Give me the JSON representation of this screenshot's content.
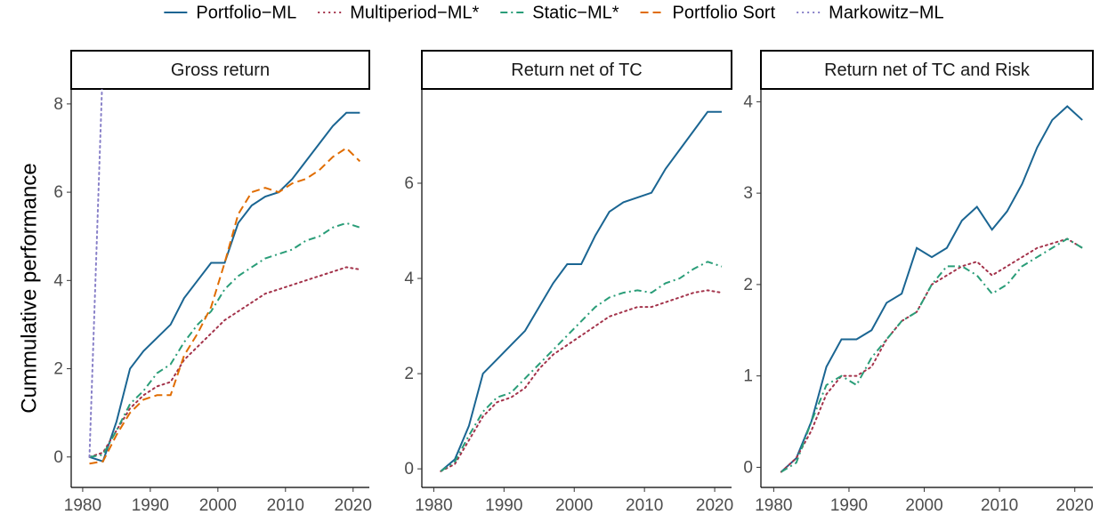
{
  "chart_data": [
    {
      "type": "line",
      "title": "Gross return",
      "ylabel": "Cummulative performance",
      "legend": "top",
      "x": [
        1981,
        1983,
        1985,
        1987,
        1989,
        1991,
        1993,
        1995,
        1997,
        1999,
        2001,
        2003,
        2005,
        2007,
        2009,
        2011,
        2013,
        2015,
        2017,
        2019,
        2021
      ],
      "xlim": [
        1978.3,
        2022.4
      ],
      "xticks": [
        1980,
        1990,
        2000,
        2010,
        2020
      ],
      "ylim": [
        -0.69,
        8.34
      ],
      "yticks": [
        0,
        2,
        4,
        6,
        8
      ],
      "series": [
        {
          "name": "Portfolio−ML",
          "color": "#1a6592",
          "linetype": "solid",
          "values": [
            0,
            -0.1,
            0.8,
            2.0,
            2.4,
            2.7,
            3.0,
            3.6,
            4.0,
            4.4,
            4.4,
            5.3,
            5.7,
            5.9,
            6.0,
            6.3,
            6.7,
            7.1,
            7.5,
            7.8,
            7.8
          ]
        },
        {
          "name": "Multiperiod−ML*",
          "color": "#a3324a",
          "linetype": "dotted",
          "values": [
            0,
            0.1,
            0.6,
            1.1,
            1.4,
            1.6,
            1.7,
            2.2,
            2.5,
            2.8,
            3.1,
            3.3,
            3.5,
            3.7,
            3.8,
            3.9,
            4.0,
            4.1,
            4.2,
            4.3,
            4.25
          ]
        },
        {
          "name": "Static−ML*",
          "color": "#2a9d78",
          "linetype": "dashdot",
          "values": [
            0,
            0.05,
            0.6,
            1.2,
            1.5,
            1.9,
            2.1,
            2.6,
            3.0,
            3.3,
            3.8,
            4.1,
            4.3,
            4.5,
            4.6,
            4.7,
            4.9,
            5.0,
            5.2,
            5.3,
            5.2
          ]
        },
        {
          "name": "Portfolio Sort",
          "color": "#e06c00",
          "linetype": "dashed",
          "values": [
            -0.15,
            -0.1,
            0.5,
            1.0,
            1.3,
            1.4,
            1.4,
            2.3,
            2.8,
            3.4,
            4.4,
            5.5,
            6.0,
            6.1,
            6.0,
            6.2,
            6.3,
            6.5,
            6.8,
            7.0,
            6.7
          ]
        },
        {
          "name": "Markowitz−ML",
          "color": "#8880c8",
          "linetype": "dotted",
          "values": [
            0,
            9,
            null,
            null,
            null,
            null,
            null,
            null,
            null,
            null,
            null,
            null,
            null,
            null,
            null,
            null,
            null,
            null,
            null,
            null,
            null
          ]
        }
      ]
    },
    {
      "type": "line",
      "title": "Return net of TC",
      "x": [
        1981,
        1983,
        1985,
        1987,
        1989,
        1991,
        1993,
        1995,
        1997,
        1999,
        2001,
        2003,
        2005,
        2007,
        2009,
        2011,
        2013,
        2015,
        2017,
        2019,
        2021
      ],
      "xlim": [
        1978.3,
        2022.4
      ],
      "xticks": [
        1980,
        1990,
        2000,
        2010,
        2020
      ],
      "ylim": [
        -0.39,
        7.98
      ],
      "yticks": [
        0,
        2,
        4,
        6
      ],
      "series": [
        {
          "name": "Portfolio−ML",
          "color": "#1a6592",
          "linetype": "solid",
          "values": [
            -0.05,
            0.2,
            0.9,
            2.0,
            2.3,
            2.6,
            2.9,
            3.4,
            3.9,
            4.3,
            4.3,
            4.9,
            5.4,
            5.6,
            5.7,
            5.8,
            6.3,
            6.7,
            7.1,
            7.5,
            7.5
          ]
        },
        {
          "name": "Multiperiod−ML*",
          "color": "#a3324a",
          "linetype": "dotted",
          "values": [
            -0.05,
            0.1,
            0.6,
            1.1,
            1.4,
            1.5,
            1.7,
            2.1,
            2.4,
            2.6,
            2.8,
            3.0,
            3.2,
            3.3,
            3.4,
            3.4,
            3.5,
            3.6,
            3.7,
            3.75,
            3.7
          ]
        },
        {
          "name": "Static−ML*",
          "color": "#2a9d78",
          "linetype": "dashdot",
          "values": [
            -0.05,
            0.15,
            0.7,
            1.2,
            1.5,
            1.6,
            1.9,
            2.2,
            2.5,
            2.8,
            3.1,
            3.4,
            3.6,
            3.7,
            3.75,
            3.7,
            3.9,
            4.0,
            4.2,
            4.35,
            4.25
          ]
        }
      ]
    },
    {
      "type": "line",
      "title": "Return net of TC and Risk",
      "x": [
        1981,
        1983,
        1985,
        1987,
        1989,
        1991,
        1993,
        1995,
        1997,
        1999,
        2001,
        2003,
        2005,
        2007,
        2009,
        2011,
        2013,
        2015,
        2017,
        2019,
        2021
      ],
      "xlim": [
        1978.3,
        2022.4
      ],
      "xticks": [
        1980,
        1990,
        2000,
        2010,
        2020
      ],
      "ylim": [
        -0.22,
        4.14
      ],
      "yticks": [
        0,
        1,
        2,
        3,
        4
      ],
      "series": [
        {
          "name": "Portfolio−ML",
          "color": "#1a6592",
          "linetype": "solid",
          "values": [
            -0.05,
            0.1,
            0.5,
            1.1,
            1.4,
            1.4,
            1.5,
            1.8,
            1.9,
            2.4,
            2.3,
            2.4,
            2.7,
            2.85,
            2.6,
            2.8,
            3.1,
            3.5,
            3.8,
            3.95,
            3.8
          ]
        },
        {
          "name": "Multiperiod−ML*",
          "color": "#a3324a",
          "linetype": "dotted",
          "values": [
            -0.05,
            0.1,
            0.4,
            0.8,
            1.0,
            1.0,
            1.1,
            1.4,
            1.6,
            1.7,
            2.0,
            2.1,
            2.2,
            2.25,
            2.1,
            2.2,
            2.3,
            2.4,
            2.45,
            2.5,
            2.4
          ]
        },
        {
          "name": "Static−ML*",
          "color": "#2a9d78",
          "linetype": "dashdot",
          "values": [
            -0.05,
            0.05,
            0.5,
            0.9,
            1.0,
            0.9,
            1.2,
            1.4,
            1.6,
            1.7,
            2.0,
            2.2,
            2.2,
            2.1,
            1.9,
            2.0,
            2.2,
            2.3,
            2.4,
            2.5,
            2.4
          ]
        }
      ]
    }
  ]
}
